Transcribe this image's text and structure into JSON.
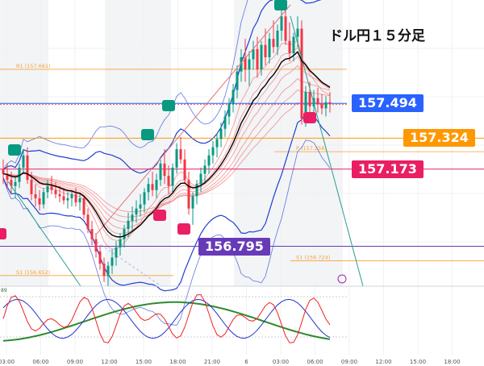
{
  "title": "ドル円１５分足",
  "colors": {
    "candle_up": "#089981",
    "candle_down": "#f23645",
    "bb": "#1f3fd1",
    "ema": "#000000",
    "ribbon": "#f28b8b",
    "pivot": "#f7a035",
    "rsi_blue": "#2233cc",
    "rsi_red": "#ee2222",
    "rsi_green": "#2d8a2d",
    "tag_blue": "#2962ff",
    "tag_orange": "#ff9800",
    "tag_pink": "#e91e63",
    "tag_purple": "#673ab7",
    "marker_teal": "#089981",
    "marker_pink": "#e91e63"
  },
  "price_tags": [
    {
      "name": "current-price-tag",
      "label": "157.494",
      "price": 157.494,
      "color": "#2962ff"
    },
    {
      "name": "level-orange-tag",
      "label": "157.324",
      "price": 157.324,
      "color": "#ff9800"
    },
    {
      "name": "level-pink-tag",
      "label": "157.173",
      "price": 157.173,
      "color": "#e91e63"
    },
    {
      "name": "level-purple-tag",
      "label": "156.795",
      "price": 156.795,
      "color": "#673ab7"
    }
  ],
  "pivots": [
    {
      "label": "R1 (157.661)",
      "price": 157.661
    },
    {
      "label": "P (157.258)",
      "price": 157.258
    },
    {
      "label": "S1 (156.724)",
      "price": 156.724
    },
    {
      "label": "S1 (156.652)",
      "price": 156.652
    }
  ],
  "x_ticks": [
    "03:00",
    "06:00",
    "09:00",
    "12:00",
    "15:00",
    "18:00",
    "21:00",
    "6",
    "03:00",
    "06:00",
    "09:00",
    "12:00",
    "15:00",
    "18:00"
  ],
  "oscillator_label": "89",
  "chart_data": {
    "type": "candlestick",
    "symbol": "USDJPY",
    "timeframe": "15m",
    "ylim": [
      156.6,
      158.0
    ],
    "ohlc": [
      [
        157.17,
        157.22,
        157.1,
        157.15
      ],
      [
        157.15,
        157.2,
        157.08,
        157.12
      ],
      [
        157.12,
        157.16,
        157.05,
        157.09
      ],
      [
        157.09,
        157.14,
        157.03,
        157.11
      ],
      [
        157.11,
        157.2,
        157.08,
        157.18
      ],
      [
        157.18,
        157.27,
        157.15,
        157.24
      ],
      [
        157.24,
        157.28,
        157.1,
        157.12
      ],
      [
        157.12,
        157.16,
        157.02,
        157.05
      ],
      [
        157.05,
        157.1,
        156.99,
        157.03
      ],
      [
        157.03,
        157.07,
        156.97,
        157.0
      ],
      [
        157.0,
        157.08,
        156.98,
        157.06
      ],
      [
        157.06,
        157.12,
        157.03,
        157.09
      ],
      [
        157.09,
        157.14,
        157.05,
        157.07
      ],
      [
        157.07,
        157.11,
        157.03,
        157.05
      ],
      [
        157.05,
        157.09,
        157.01,
        157.04
      ],
      [
        157.04,
        157.08,
        157.0,
        157.02
      ],
      [
        157.02,
        157.06,
        156.98,
        157.03
      ],
      [
        157.03,
        157.07,
        156.99,
        157.05
      ],
      [
        157.05,
        157.08,
        156.99,
        157.01
      ],
      [
        157.01,
        157.05,
        156.97,
        157.03
      ],
      [
        157.03,
        157.04,
        156.93,
        156.95
      ],
      [
        156.95,
        156.98,
        156.86,
        156.88
      ],
      [
        156.88,
        156.92,
        156.8,
        156.83
      ],
      [
        156.83,
        156.86,
        156.74,
        156.77
      ],
      [
        156.77,
        156.8,
        156.68,
        156.71
      ],
      [
        156.71,
        156.74,
        156.62,
        156.65
      ],
      [
        156.65,
        156.72,
        156.6,
        156.7
      ],
      [
        156.7,
        156.78,
        156.66,
        156.74
      ],
      [
        156.74,
        156.82,
        156.7,
        156.79
      ],
      [
        156.79,
        156.86,
        156.75,
        156.83
      ],
      [
        156.83,
        156.9,
        156.79,
        156.88
      ],
      [
        156.88,
        156.96,
        156.84,
        156.92
      ],
      [
        156.92,
        156.99,
        156.87,
        156.95
      ],
      [
        156.95,
        157.02,
        156.91,
        156.98
      ],
      [
        156.98,
        157.05,
        156.94,
        157.0
      ],
      [
        157.0,
        157.08,
        156.96,
        157.06
      ],
      [
        157.06,
        157.13,
        157.02,
        157.1
      ],
      [
        157.1,
        157.16,
        157.04,
        157.07
      ],
      [
        157.07,
        157.15,
        157.03,
        157.12
      ],
      [
        157.12,
        157.22,
        157.09,
        157.2
      ],
      [
        157.2,
        157.27,
        157.1,
        157.14
      ],
      [
        157.14,
        157.19,
        157.05,
        157.09
      ],
      [
        157.09,
        157.2,
        157.06,
        157.18
      ],
      [
        157.18,
        157.3,
        157.15,
        157.27
      ],
      [
        157.27,
        157.33,
        157.2,
        157.22
      ],
      [
        157.22,
        157.27,
        157.1,
        157.12
      ],
      [
        157.12,
        157.16,
        156.95,
        156.98
      ],
      [
        156.98,
        157.06,
        156.9,
        157.04
      ],
      [
        157.04,
        157.12,
        157.0,
        157.1
      ],
      [
        157.1,
        157.18,
        157.06,
        157.15
      ],
      [
        157.15,
        157.22,
        157.1,
        157.19
      ],
      [
        157.19,
        157.27,
        157.15,
        157.24
      ],
      [
        157.24,
        157.31,
        157.2,
        157.28
      ],
      [
        157.28,
        157.35,
        157.23,
        157.32
      ],
      [
        157.32,
        157.4,
        157.28,
        157.37
      ],
      [
        157.37,
        157.46,
        157.33,
        157.43
      ],
      [
        157.43,
        157.52,
        157.39,
        157.49
      ],
      [
        157.49,
        157.59,
        157.45,
        157.56
      ],
      [
        157.56,
        157.68,
        157.52,
        157.65
      ],
      [
        157.65,
        157.76,
        157.6,
        157.72
      ],
      [
        157.72,
        157.81,
        157.6,
        157.66
      ],
      [
        157.66,
        157.75,
        157.58,
        157.71
      ],
      [
        157.71,
        157.8,
        157.66,
        157.76
      ],
      [
        157.76,
        157.82,
        157.62,
        157.66
      ],
      [
        157.66,
        157.8,
        157.63,
        157.78
      ],
      [
        157.78,
        157.86,
        157.68,
        157.72
      ],
      [
        157.72,
        157.84,
        157.69,
        157.81
      ],
      [
        157.81,
        157.9,
        157.74,
        157.77
      ],
      [
        157.77,
        157.88,
        157.73,
        157.85
      ],
      [
        157.85,
        157.96,
        157.8,
        157.92
      ],
      [
        157.92,
        157.98,
        157.78,
        157.8
      ],
      [
        157.8,
        157.89,
        157.7,
        157.74
      ],
      [
        157.74,
        157.84,
        157.7,
        157.82
      ],
      [
        157.82,
        157.92,
        157.77,
        157.86
      ],
      [
        157.86,
        157.9,
        157.39,
        157.42
      ],
      [
        157.42,
        157.58,
        157.38,
        157.55
      ],
      [
        157.55,
        157.6,
        157.44,
        157.48
      ],
      [
        157.48,
        157.56,
        157.43,
        157.52
      ],
      [
        157.52,
        157.57,
        157.45,
        157.49
      ],
      [
        157.49,
        157.54,
        157.44,
        157.47
      ],
      [
        157.47,
        157.53,
        157.43,
        157.5
      ],
      [
        157.5,
        157.55,
        157.45,
        157.49
      ]
    ]
  }
}
